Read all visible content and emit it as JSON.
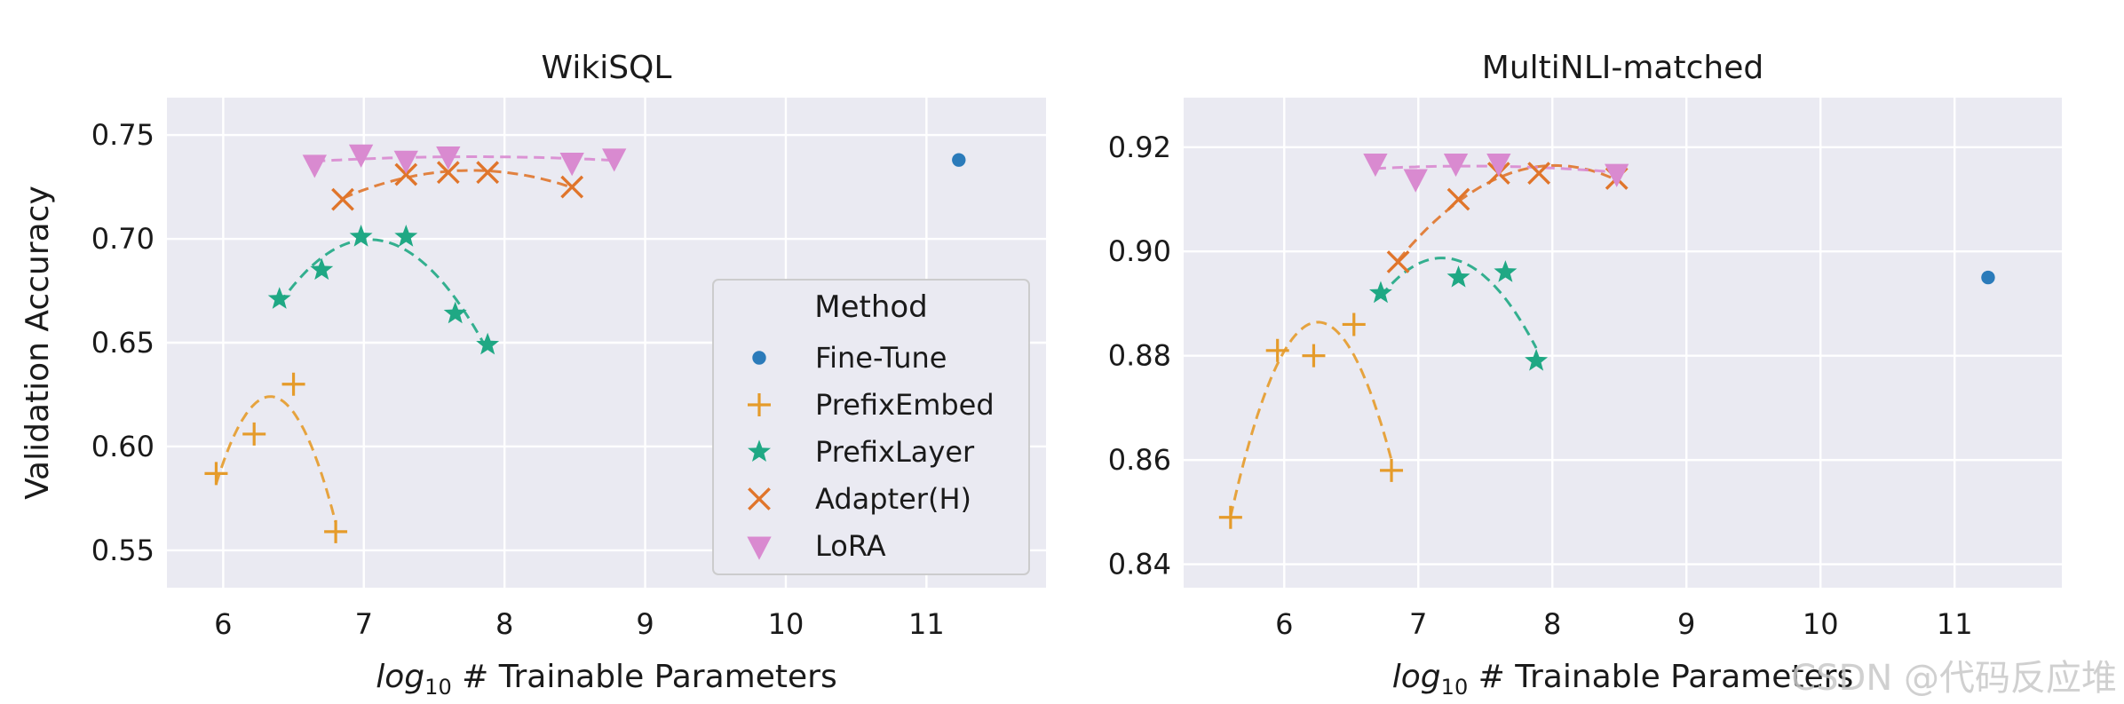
{
  "chart_data": [
    {
      "type": "scatter",
      "title": "WikiSQL",
      "xlabel_italic": "log",
      "xlabel_sub": "10",
      "xlabel_rest": " # Trainable Parameters",
      "ylabel": "Validation Accuracy",
      "xlim": [
        5.6,
        11.85
      ],
      "ylim": [
        0.532,
        0.768
      ],
      "xticks": [
        6,
        7,
        8,
        9,
        10,
        11
      ],
      "yticks": [
        0.55,
        0.6,
        0.65,
        0.7,
        0.75
      ],
      "ytick_format": 2,
      "grid": true,
      "legend": {
        "title": "Method",
        "placement": "center-right",
        "entries": [
          "Fine-Tune",
          "PrefixEmbed",
          "PrefixLayer",
          "Adapter(H)",
          "LoRA"
        ]
      },
      "series": [
        {
          "name": "Fine-Tune",
          "marker": "dot",
          "color": "#2b7bba",
          "fit": false,
          "points": [
            [
              11.23,
              0.738
            ]
          ]
        },
        {
          "name": "PrefixEmbed",
          "marker": "plus",
          "color": "#e59b2a",
          "fit": true,
          "points": [
            [
              5.95,
              0.587
            ],
            [
              6.22,
              0.606
            ],
            [
              6.5,
              0.63
            ],
            [
              6.8,
              0.559
            ]
          ]
        },
        {
          "name": "PrefixLayer",
          "marker": "star",
          "color": "#1fa884",
          "fit": true,
          "points": [
            [
              6.4,
              0.671
            ],
            [
              6.7,
              0.685
            ],
            [
              6.98,
              0.701
            ],
            [
              7.3,
              0.701
            ],
            [
              7.65,
              0.664
            ],
            [
              7.88,
              0.649
            ]
          ]
        },
        {
          "name": "Adapter(H)",
          "marker": "x",
          "color": "#e0752b",
          "fit": true,
          "points": [
            [
              6.85,
              0.719
            ],
            [
              7.3,
              0.731
            ],
            [
              7.6,
              0.732
            ],
            [
              7.88,
              0.732
            ],
            [
              8.48,
              0.725
            ]
          ]
        },
        {
          "name": "LoRA",
          "marker": "tri",
          "color": "#d98ad0",
          "fit": true,
          "points": [
            [
              6.65,
              0.736
            ],
            [
              6.98,
              0.741
            ],
            [
              7.3,
              0.738
            ],
            [
              7.6,
              0.74
            ],
            [
              8.48,
              0.737
            ],
            [
              8.78,
              0.739
            ]
          ]
        }
      ]
    },
    {
      "type": "scatter",
      "title": "MultiNLI-matched",
      "xlabel_italic": "log",
      "xlabel_sub": "10",
      "xlabel_rest": " # Trainable Parameters",
      "ylabel": "",
      "xlim": [
        5.25,
        11.8
      ],
      "ylim": [
        0.8355,
        0.9295
      ],
      "xticks": [
        6,
        7,
        8,
        9,
        10,
        11
      ],
      "yticks": [
        0.84,
        0.86,
        0.88,
        0.9,
        0.92
      ],
      "ytick_format": 2,
      "grid": true,
      "legend": null,
      "series": [
        {
          "name": "Fine-Tune",
          "marker": "dot",
          "color": "#2b7bba",
          "fit": false,
          "points": [
            [
              11.25,
              0.895
            ]
          ]
        },
        {
          "name": "PrefixEmbed",
          "marker": "plus",
          "color": "#e59b2a",
          "fit": true,
          "points": [
            [
              5.6,
              0.849
            ],
            [
              5.95,
              0.881
            ],
            [
              6.22,
              0.88
            ],
            [
              6.52,
              0.886
            ],
            [
              6.8,
              0.858
            ]
          ]
        },
        {
          "name": "PrefixLayer",
          "marker": "star",
          "color": "#1fa884",
          "fit": true,
          "points": [
            [
              6.72,
              0.892
            ],
            [
              7.3,
              0.895
            ],
            [
              7.65,
              0.896
            ],
            [
              7.88,
              0.879
            ]
          ]
        },
        {
          "name": "Adapter(H)",
          "marker": "x",
          "color": "#e0752b",
          "fit": true,
          "points": [
            [
              6.85,
              0.898
            ],
            [
              7.3,
              0.91
            ],
            [
              7.6,
              0.915
            ],
            [
              7.9,
              0.915
            ],
            [
              8.48,
              0.914
            ]
          ]
        },
        {
          "name": "LoRA",
          "marker": "tri",
          "color": "#d98ad0",
          "fit": true,
          "points": [
            [
              6.68,
              0.917
            ],
            [
              6.98,
              0.914
            ],
            [
              7.28,
              0.917
            ],
            [
              7.6,
              0.917
            ],
            [
              8.48,
              0.915
            ]
          ]
        }
      ]
    }
  ],
  "watermark": "CSDN @代码反应堆"
}
